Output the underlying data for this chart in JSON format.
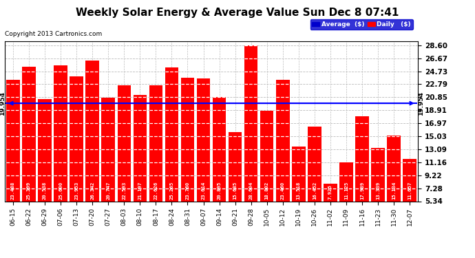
{
  "title": "Weekly Solar Energy & Average Value Sun Dec 8 07:41",
  "copyright": "Copyright 2013 Cartronics.com",
  "categories": [
    "06-15",
    "06-22",
    "06-29",
    "07-06",
    "07-13",
    "07-20",
    "07-27",
    "08-03",
    "08-10",
    "08-17",
    "08-24",
    "08-31",
    "09-07",
    "09-14",
    "09-21",
    "09-28",
    "10-05",
    "10-12",
    "10-19",
    "10-26",
    "11-02",
    "11-09",
    "11-16",
    "11-23",
    "11-30",
    "12-07"
  ],
  "values": [
    23.488,
    25.399,
    20.538,
    25.6,
    23.953,
    26.342,
    20.747,
    22.593,
    21.197,
    22.626,
    25.265,
    23.76,
    23.614,
    20.895,
    15.685,
    28.604,
    18.802,
    23.46,
    13.518,
    16.452,
    7.925,
    11.125,
    17.989,
    13.339,
    15.134,
    11.657
  ],
  "average_line": 19.954,
  "average_label": "19.954",
  "bar_color": "#FF0000",
  "avg_line_color": "#0000FF",
  "background_color": "#FFFFFF",
  "grid_color": "#BBBBBB",
  "yticks": [
    5.34,
    7.28,
    9.22,
    11.16,
    13.09,
    15.03,
    16.97,
    18.91,
    20.85,
    22.79,
    24.73,
    26.67,
    28.6
  ],
  "ylim_min": 5.34,
  "ylim_max": 29.2,
  "title_fontsize": 11,
  "copyright_fontsize": 6.5,
  "legend_avg_label": "Average  ($)",
  "legend_daily_label": "Daily   ($)"
}
